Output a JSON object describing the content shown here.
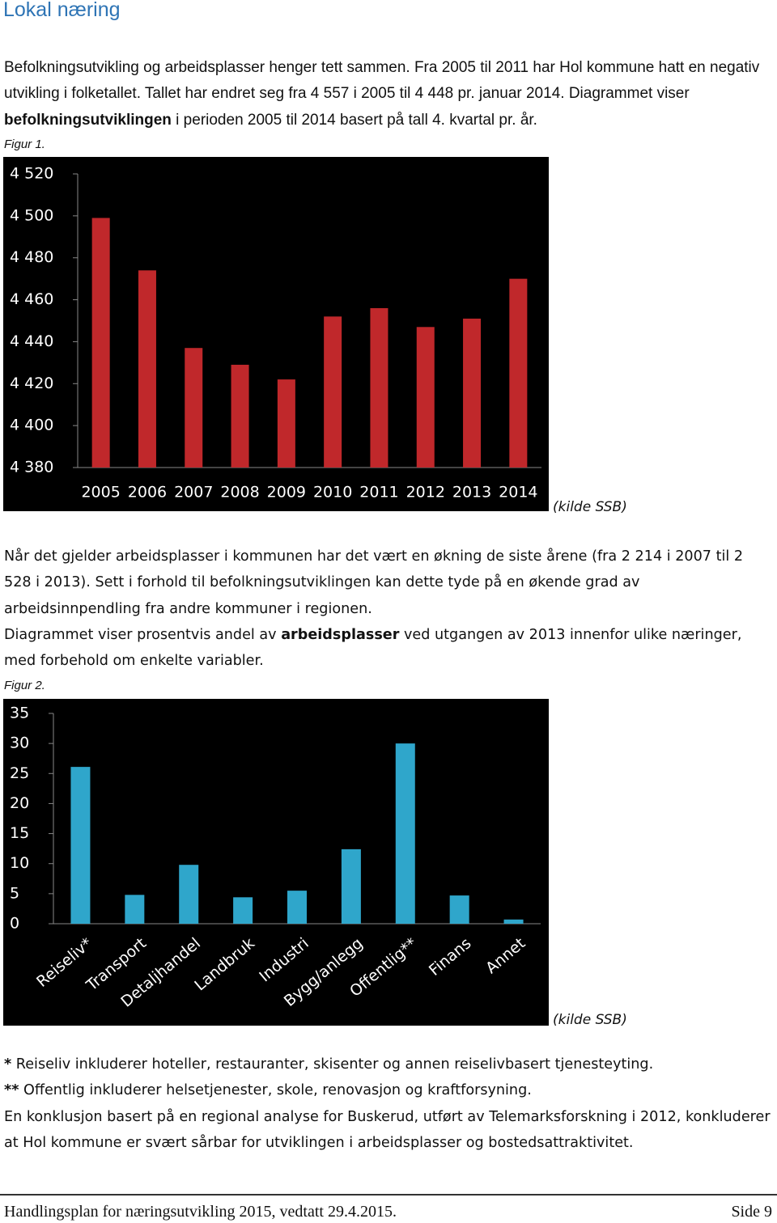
{
  "title": "Lokal næring",
  "intro": [
    "Befolkningsutvikling og arbeidsplasser henger tett sammen. Fra 2005 til 2011 har Hol kommune hatt en negativ utvikling i folketallet. Tallet har endret seg fra 4 557 i 2005 til 4 448 pr. januar 2014. Diagrammet viser ",
    "befolkningsutviklingen",
    " i perioden 2005 til 2014 basert på tall 4. kvartal pr. år."
  ],
  "figure_1_caption": "Figur 1.",
  "source_1": "(kilde SSB)",
  "paragraph_2": "Når det gjelder arbeidsplasser i kommunen har det vært en økning de siste årene (fra 2 214 i 2007 til 2 528 i 2013). Sett i forhold til befolkningsutviklingen kan dette tyde på en økende grad av arbeidsinnpendling fra andre kommuner i regionen.",
  "paragraph_3": [
    "Diagrammet viser prosentvis andel av ",
    "arbeidsplasser",
    " ved utgangen av 2013 innenfor ulike næringer, med forbehold om enkelte variabler."
  ],
  "figure_2_caption": "Figur 2.",
  "source_2": "(kilde SSB)",
  "notes": [
    [
      "*",
      " Reiseliv inkluderer hoteller, restauranter, skisenter og annen reiselivbasert tjenesteyting."
    ],
    [
      "**",
      " Offentlig inkluderer helsetjenester, skole, renovasjon og kraftforsyning."
    ]
  ],
  "conclusion": "En konklusjon basert på en regional analyse for Buskerud, utført av Telemarksforskning i 2012, konkluderer at Hol kommune er svært sårbar for utviklingen i arbeidsplasser og bostedsattraktivitet.",
  "footer": {
    "left": "Handlingsplan for næringsutvikling 2015, vedtatt 29.4.2015.",
    "right": "Side 9"
  },
  "chart_data": [
    {
      "type": "bar",
      "categories": [
        "2005",
        "2006",
        "2007",
        "2008",
        "2009",
        "2010",
        "2011",
        "2012",
        "2013",
        "2014"
      ],
      "values": [
        4499,
        4474,
        4437,
        4429,
        4422,
        4452,
        4456,
        4447,
        4451,
        4470
      ],
      "color": "#c0282b",
      "ylim": [
        4380,
        4520
      ],
      "yticks": [
        {
          "value": 4380,
          "label": "4 380"
        },
        {
          "value": 4400,
          "label": "4 400"
        },
        {
          "value": 4420,
          "label": "4 420"
        },
        {
          "value": 4440,
          "label": "4 440"
        },
        {
          "value": 4460,
          "label": "4 460"
        },
        {
          "value": 4480,
          "label": "4 480"
        },
        {
          "value": 4500,
          "label": "4 500"
        },
        {
          "value": 4520,
          "label": "4 520"
        }
      ]
    },
    {
      "type": "bar",
      "categories": [
        "Reiseliv*",
        "Transport",
        "Detaljhandel",
        "Landbruk",
        "Industri",
        "Bygg/anlegg",
        "Offentlig**",
        "Finans",
        "Annet"
      ],
      "values": [
        26.1,
        4.8,
        9.8,
        4.4,
        5.5,
        12.4,
        30.0,
        4.7,
        0.7
      ],
      "color": "#2fa6cb",
      "ylim": [
        0,
        35
      ],
      "yticks": [
        0,
        5,
        10,
        15,
        20,
        25,
        30,
        35
      ]
    }
  ]
}
